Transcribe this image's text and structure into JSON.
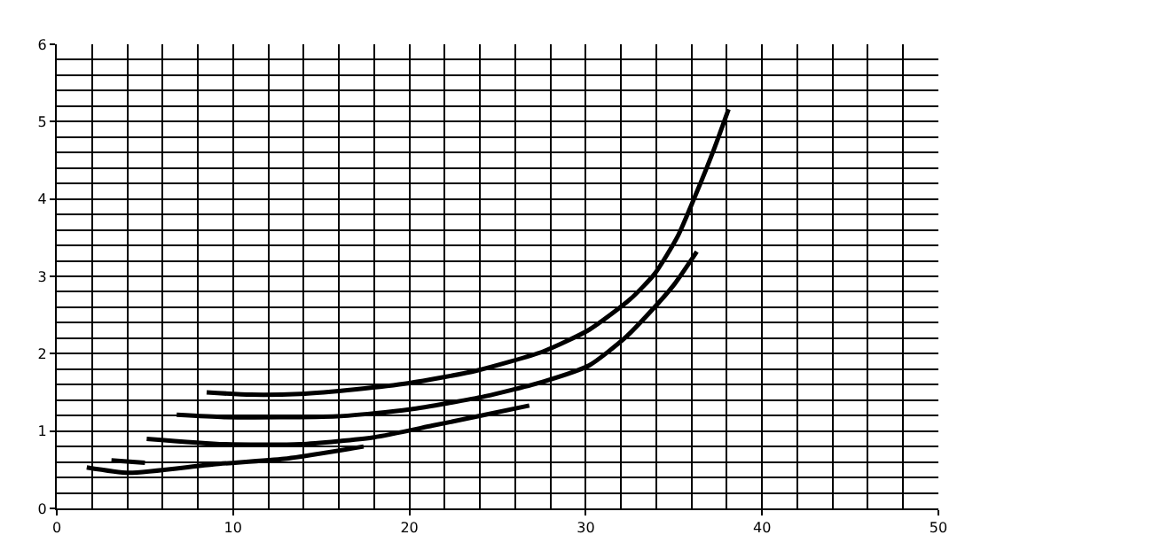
{
  "chart_data": {
    "type": "line",
    "xlim": [
      0,
      50
    ],
    "ylim": [
      0,
      6
    ],
    "xticks": [
      0,
      10,
      20,
      30,
      40,
      50
    ],
    "yticks": [
      0,
      1,
      2,
      3,
      4,
      5,
      6
    ],
    "grid": true,
    "marker": "none",
    "line_style": "solid",
    "series": [
      {
        "color": "#000000",
        "x": [
          8.5,
          11,
          13.8,
          17,
          20,
          23.8,
          27.6,
          30.2,
          32.5,
          33.9,
          35.2,
          36.3,
          37.3,
          38.1
        ],
        "values": [
          1.5,
          1.47,
          1.48,
          1.54,
          1.62,
          1.78,
          2.03,
          2.31,
          2.7,
          3.03,
          3.51,
          4.09,
          4.66,
          5.16
        ]
      },
      {
        "color": "#000000",
        "x": [
          6.8,
          9.5,
          15.9,
          20,
          24.3,
          27.6,
          30.2,
          32.3,
          33.7,
          35,
          36.3
        ],
        "values": [
          1.21,
          1.18,
          1.19,
          1.28,
          1.45,
          1.64,
          1.85,
          2.22,
          2.55,
          2.89,
          3.32
        ]
      },
      {
        "color": "#000000",
        "x": [
          5.1,
          9.5,
          13.8,
          18,
          21.3,
          24.3,
          26.8
        ],
        "values": [
          0.9,
          0.83,
          0.83,
          0.92,
          1.07,
          1.21,
          1.33
        ]
      },
      {
        "color": "#000000",
        "x": [
          3.1,
          5.0
        ],
        "values": [
          0.62,
          0.59
        ]
      },
      {
        "color": "#000000",
        "x": [
          1.7,
          4.1,
          8.9,
          12.9,
          17.4
        ],
        "values": [
          0.53,
          0.46,
          0.57,
          0.64,
          0.8
        ]
      }
    ]
  }
}
